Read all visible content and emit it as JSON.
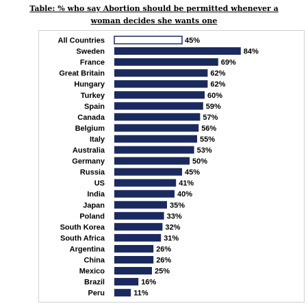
{
  "title": {
    "line1": "Table: % who say Abortion should be permitted whenever a",
    "line2": "woman decides she wants one"
  },
  "colors": {
    "bar": "#1b2a5e",
    "highlight_fill": "#ffffff",
    "highlight_stroke": "#1b2a5e"
  },
  "chart_data": {
    "type": "bar",
    "orientation": "horizontal",
    "categories": [
      "All Countries",
      "Sweden",
      "France",
      "Great Britain",
      "Hungary",
      "Turkey",
      "Spain",
      "Canada",
      "Belgium",
      "Italy",
      "Australia",
      "Germany",
      "Russia",
      "US",
      "India",
      "Japan",
      "Poland",
      "South Korea",
      "South Africa",
      "Argentina",
      "China",
      "Mexico",
      "Brazil",
      "Peru"
    ],
    "values": [
      45,
      84,
      69,
      62,
      62,
      60,
      59,
      57,
      56,
      55,
      53,
      50,
      45,
      41,
      40,
      35,
      33,
      32,
      31,
      26,
      26,
      25,
      16,
      11
    ],
    "value_labels": [
      "45%",
      "84%",
      "69%",
      "62%",
      "62%",
      "60%",
      "59%",
      "57%",
      "56%",
      "55%",
      "53%",
      "50%",
      "45%",
      "41%",
      "40%",
      "35%",
      "33%",
      "32%",
      "31%",
      "26%",
      "26%",
      "25%",
      "16%",
      "11%"
    ],
    "highlight_index": 0,
    "xlim": [
      0,
      100
    ],
    "grid": false,
    "legend": "none"
  }
}
